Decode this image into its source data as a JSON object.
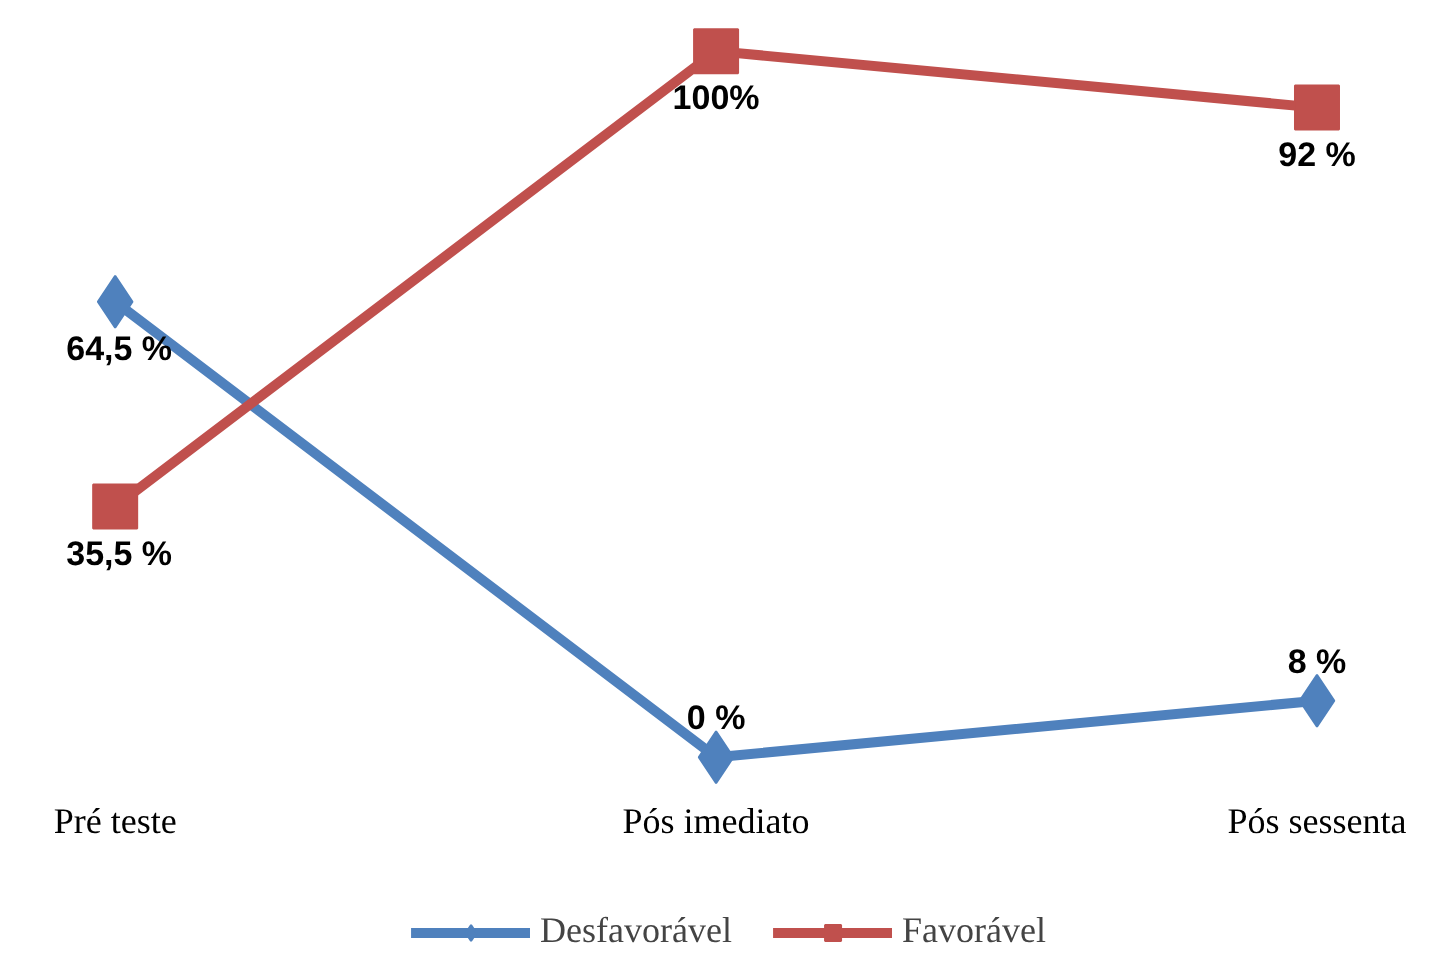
{
  "chart_data": {
    "type": "line",
    "categories": [
      "Pré teste",
      "Pós imediato",
      "Pós sessenta"
    ],
    "series": [
      {
        "name": "Desfavorável",
        "color": "#4f81bd",
        "marker": "diamond",
        "values": [
          64.5,
          0,
          8
        ],
        "value_labels": [
          "64,5 %",
          "0 %",
          "8 %"
        ]
      },
      {
        "name": "Favorável",
        "color": "#c0504d",
        "marker": "square",
        "values": [
          35.5,
          100,
          92
        ],
        "value_labels": [
          "35,5 %",
          "100%",
          "92 %"
        ]
      }
    ],
    "legend": "bottom",
    "line_style": "solid"
  }
}
